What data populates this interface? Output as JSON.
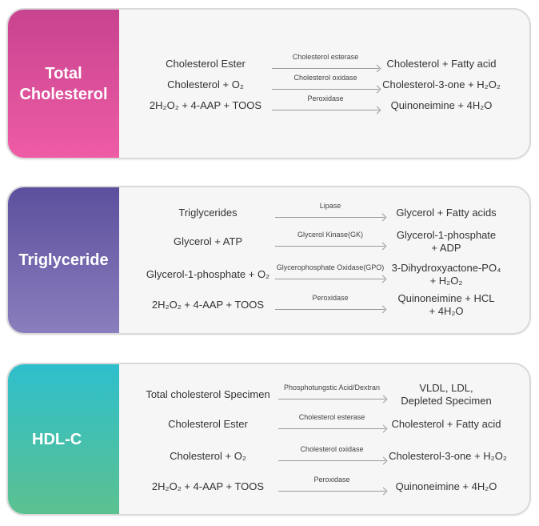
{
  "panels": [
    {
      "id": "total-cholesterol",
      "label": [
        "Total",
        "Cholesterol"
      ],
      "color_top": "#c8438f",
      "color_bottom": "#ee5ca5",
      "reactions": [
        {
          "substrate": "Cholesterol Ester",
          "enzyme": "Cholesterol esterase",
          "product": [
            "Cholesterol + Fatty acid"
          ]
        },
        {
          "substrate": "Cholesterol + O₂",
          "enzyme": "Cholesterol oxidase",
          "product": [
            "Cholesterol-3-one + H₂O₂"
          ]
        },
        {
          "substrate": "2H₂O₂ + 4-AAP + TOOS",
          "enzyme": "Peroxidase",
          "product": [
            "Quinoneimine + 4H₂O"
          ]
        }
      ]
    },
    {
      "id": "triglyceride",
      "label": [
        "Triglyceride"
      ],
      "color_top": "#5c4f9d",
      "color_bottom": "#8b7ebd",
      "reactions": [
        {
          "substrate": "Triglycerides",
          "enzyme": "Lipase",
          "product": [
            "Glycerol + Fatty acids"
          ]
        },
        {
          "substrate": "Glycerol + ATP",
          "enzyme": "Glycerol Kinase(GK)",
          "product": [
            "Glycerol-1-phosphate",
            "+ ADP"
          ]
        },
        {
          "substrate": "Glycerol-1-phosphate + O₂",
          "enzyme": "Glycerophosphate Oxidase(GPO)",
          "product": [
            "3-Dihydroxyactone-PO₄",
            "+ H₂O₂"
          ]
        },
        {
          "substrate": "2H₂O₂ + 4-AAP + TOOS",
          "enzyme": "Peroxidase",
          "product": [
            "Quinoneimine + HCL",
            "+ 4H₂O"
          ]
        }
      ]
    },
    {
      "id": "hdl-c",
      "label": [
        "HDL-C"
      ],
      "color_top": "#2ebfcc",
      "color_bottom": "#5cc190",
      "reactions": [
        {
          "substrate": "Total cholesterol Specimen",
          "enzyme": "Phosphotungstic Acid/Dextran",
          "product": [
            "VLDL, LDL,",
            "Depleted Specimen"
          ]
        },
        {
          "substrate": "Cholesterol Ester",
          "enzyme": "Cholesterol esterase",
          "product": [
            "Cholesterol + Fatty acid"
          ]
        },
        {
          "substrate": "Cholesterol + O₂",
          "enzyme": "Cholesterol oxidase",
          "product": [
            "Cholesterol-3-one + H₂O₂"
          ]
        },
        {
          "substrate": "2H₂O₂ + 4-AAP + TOOS",
          "enzyme": "Peroxidase",
          "product": [
            "Quinoneimine + 4H₂O"
          ]
        }
      ]
    }
  ]
}
